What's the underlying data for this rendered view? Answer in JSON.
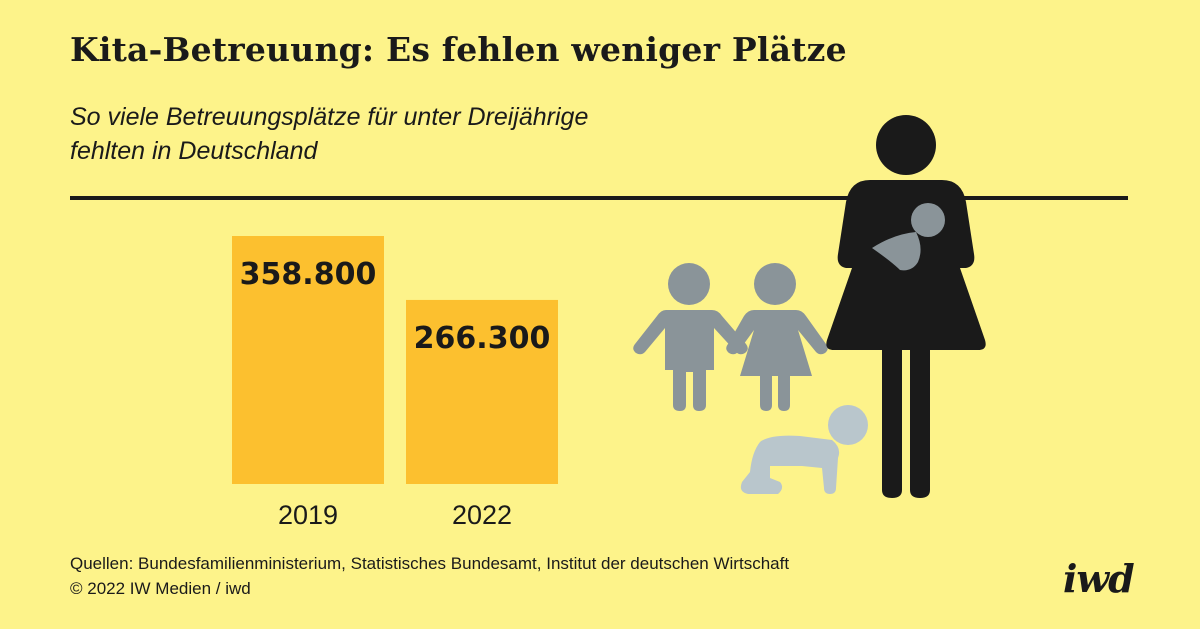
{
  "header": {
    "title": "Kita-Betreuung: Es fehlen weniger Plätze",
    "subtitle_line1": "So viele Betreuungsplätze für unter Dreijährige",
    "subtitle_line2": "fehlten in Deutschland"
  },
  "chart_data": {
    "type": "bar",
    "categories": [
      "2019",
      "2022"
    ],
    "values": [
      358800,
      266300
    ],
    "value_labels": [
      "358.800",
      "266.300"
    ],
    "ylim": [
      0,
      358800
    ],
    "grid": false,
    "colors": {
      "bar": "#fcc02f",
      "background": "#fdf38a"
    }
  },
  "footer": {
    "sources": "Quellen: Bundesfamilienministerium, Statistisches Bundesamt, Institut der deutschen Wirtschaft",
    "copyright": "© 2022 IW Medien / iwd",
    "logo": "iwd"
  },
  "illustration": {
    "icons": [
      "mother-with-baby-icon",
      "boy-icon",
      "girl-icon",
      "crawling-baby-icon"
    ],
    "colors": {
      "mother": "#1a1a1a",
      "children": "#8a9499",
      "crawler": "#b9c6cc"
    }
  }
}
